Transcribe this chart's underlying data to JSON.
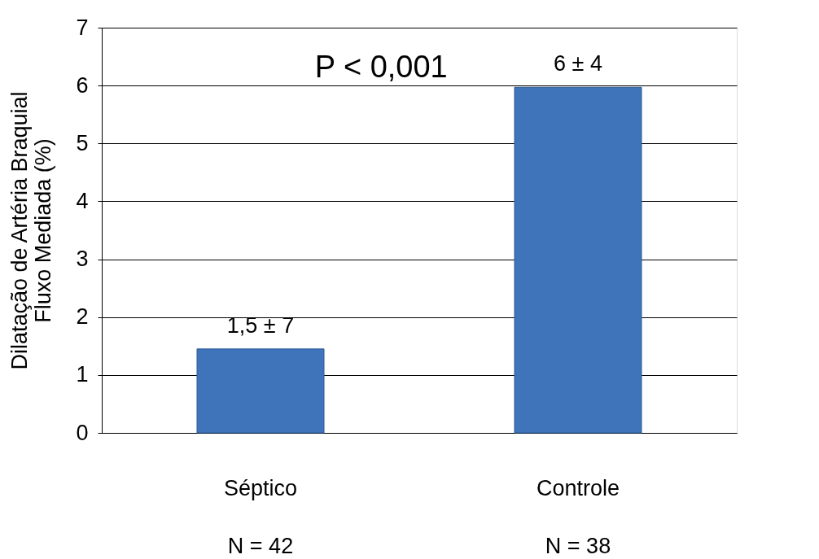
{
  "chart_data": {
    "type": "bar",
    "ylabel": "Dilatação de Artéria Braquial\nFluxo Mediada (%)",
    "categories": [
      "Séptico",
      "Controle"
    ],
    "values": [
      1.45,
      5.97
    ],
    "value_labels": [
      "1,5 ± 7",
      "6 ± 4"
    ],
    "color": "#3f74ba",
    "ylim": [
      0,
      7
    ],
    "yticks": [
      0,
      1,
      2,
      3,
      4,
      5,
      6,
      7
    ],
    "grid": "y",
    "annotations": [
      "P < 0,001",
      "N = 42",
      "N = 38"
    ]
  }
}
